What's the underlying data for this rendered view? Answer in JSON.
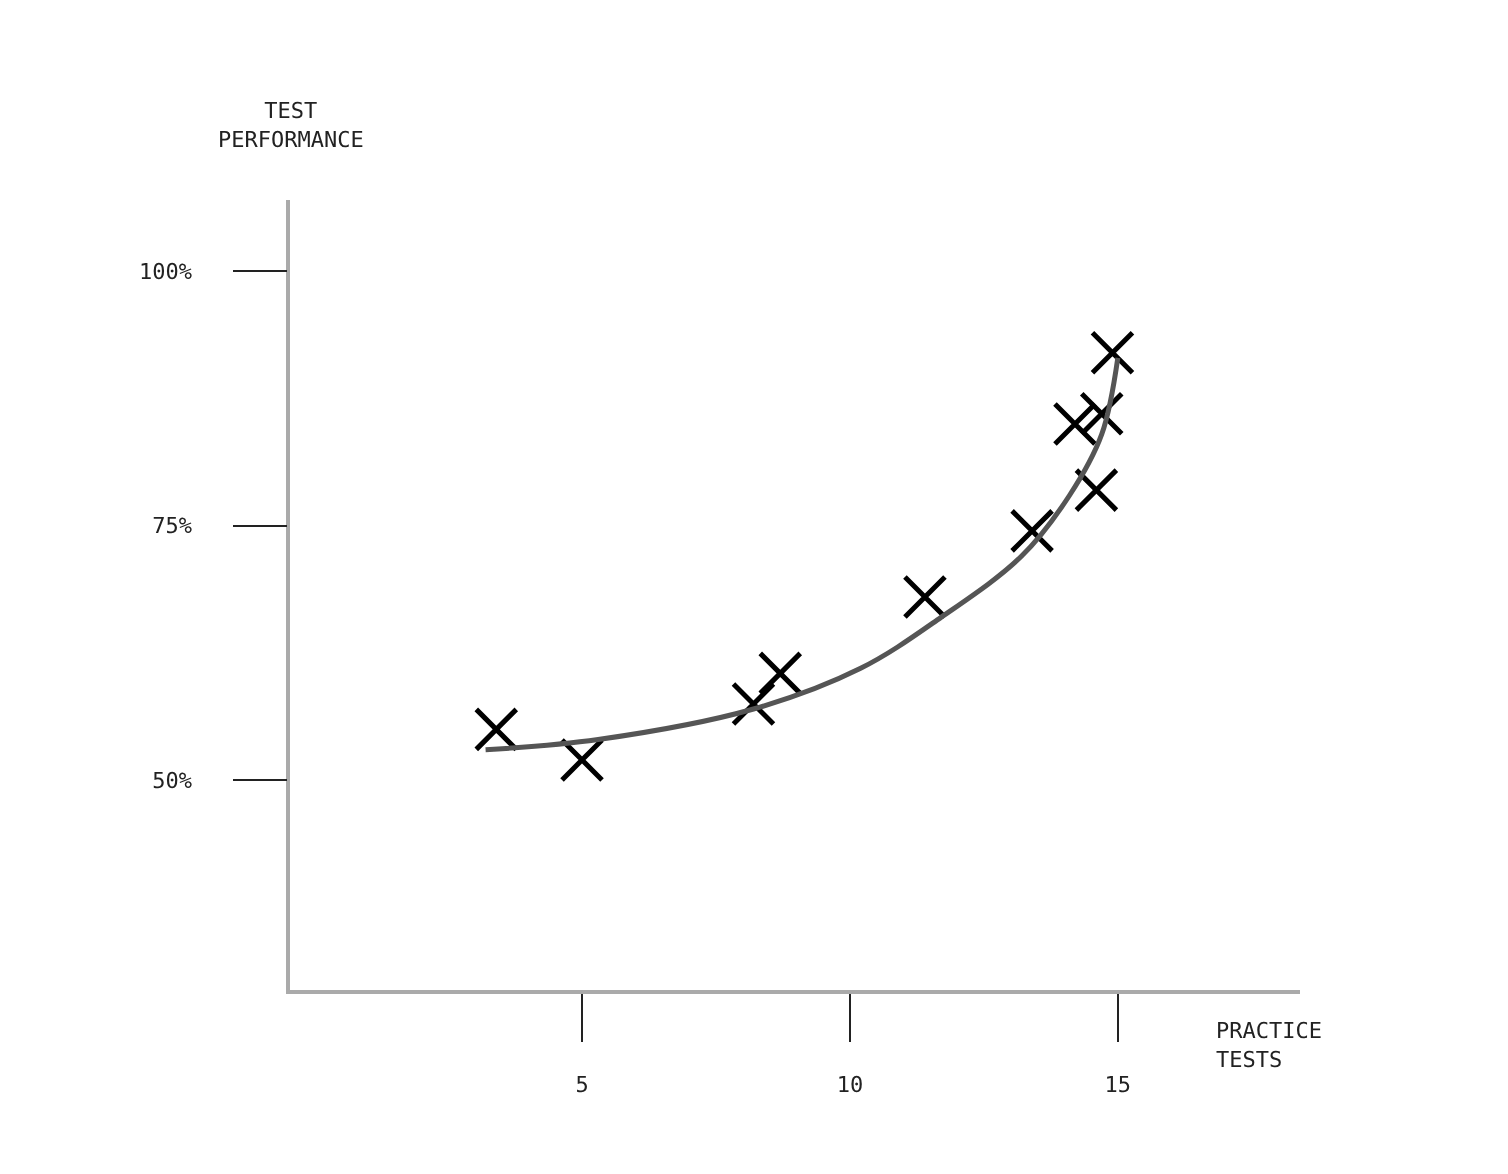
{
  "chart_data": {
    "type": "scatter",
    "xlabel": "PRACTICE TESTS",
    "ylabel": "TEST PERFORMANCE",
    "xlim": [
      -0.45,
      18.4
    ],
    "ylim": [
      29.4,
      107
    ],
    "xticks": [
      5,
      10,
      15
    ],
    "yticks": [
      {
        "value": 50,
        "label": "50%"
      },
      {
        "value": 75,
        "label": "75%"
      },
      {
        "value": 100,
        "label": "100%"
      }
    ],
    "marker": "cross",
    "series": [
      {
        "type": "scatter",
        "color": "#000000",
        "x": [
          3.4,
          5.0,
          8.2,
          8.7,
          11.4,
          13.4,
          14.2,
          14.7,
          14.6,
          14.9
        ],
        "values": [
          55,
          52,
          57.5,
          60.5,
          68,
          74.5,
          85,
          86,
          78.5,
          92
        ]
      },
      {
        "type": "line",
        "color": "#555555",
        "marker": "none",
        "x": [
          3.2,
          5.3,
          8.2,
          10.2,
          11.7,
          13.2,
          14.1,
          14.7,
          15.0
        ],
        "values": [
          53,
          54,
          57,
          61,
          66,
          72,
          78,
          84,
          91.5
        ]
      }
    ]
  }
}
